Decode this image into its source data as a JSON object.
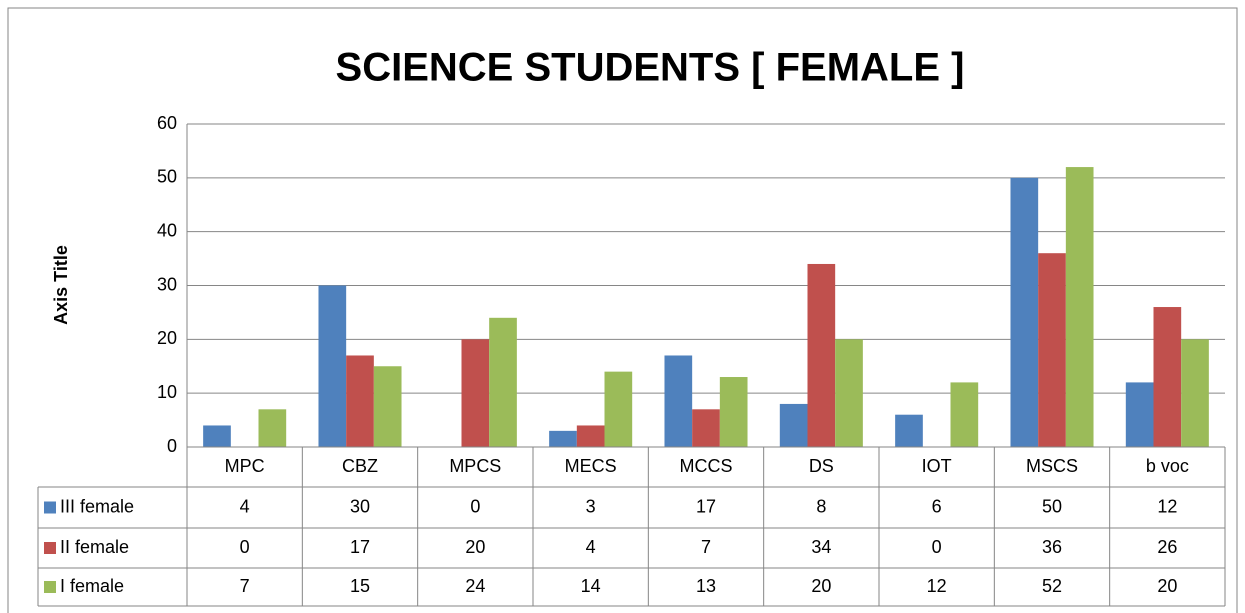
{
  "chart_data": {
    "type": "bar",
    "title": "SCIENCE STUDENTS [ FEMALE ]",
    "y_label": "Axis Title",
    "categories": [
      "MPC",
      "CBZ",
      "MPCS",
      "MECS",
      "MCCS",
      "DS",
      "IOT",
      "MSCS",
      "b voc"
    ],
    "series": [
      {
        "name": "III female",
        "color": "#4f81bd",
        "values": [
          4,
          30,
          0,
          3,
          17,
          8,
          6,
          50,
          12
        ]
      },
      {
        "name": "II female",
        "color": "#c0504d",
        "values": [
          0,
          17,
          20,
          4,
          7,
          34,
          0,
          36,
          26
        ]
      },
      {
        "name": "I female",
        "color": "#9bbb59",
        "values": [
          7,
          15,
          24,
          14,
          13,
          20,
          12,
          52,
          20
        ]
      }
    ],
    "ylim": [
      0,
      60
    ],
    "yticks": [
      0,
      10,
      20,
      30,
      40,
      50,
      60
    ],
    "grid": true,
    "data_table": true
  }
}
